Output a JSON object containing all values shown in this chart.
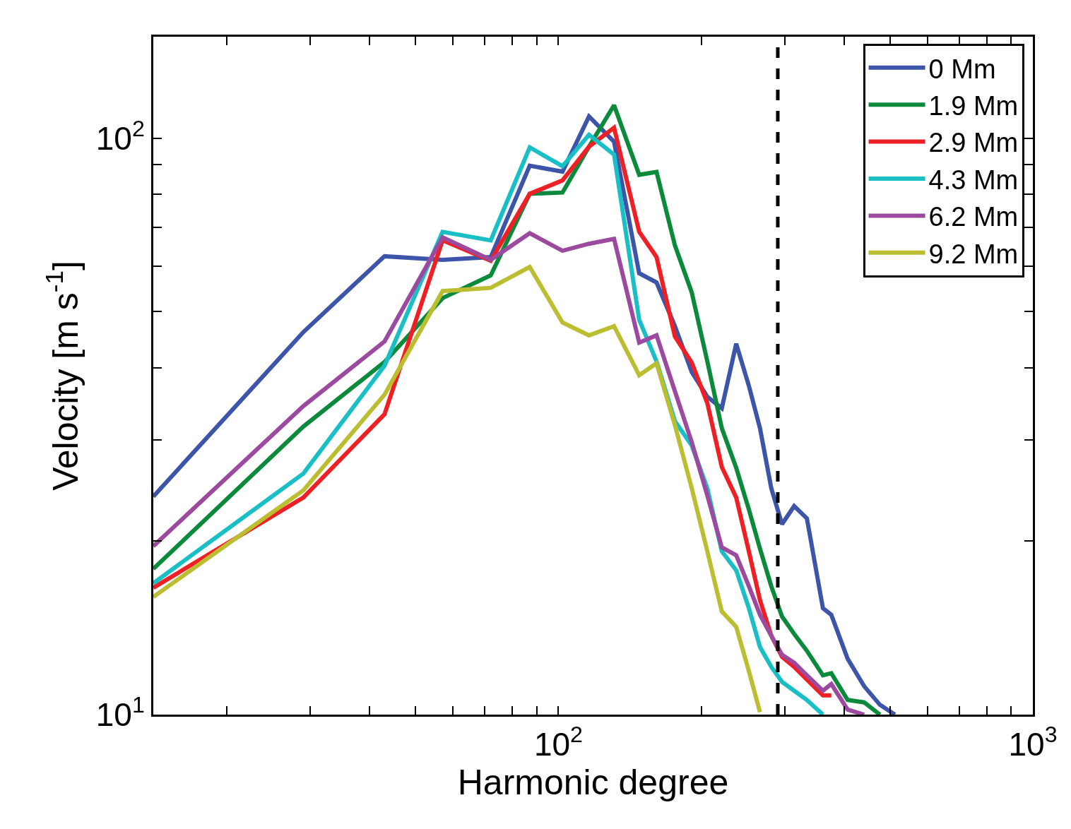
{
  "chart_data": {
    "type": "line",
    "xlabel": "Harmonic degree",
    "ylabel": "Velocity [m s$^{-1}$]",
    "log": "xy",
    "legend": "top right",
    "line_style": "solid",
    "marker": "none",
    "xlim": [
      14,
      1000
    ],
    "ylim": [
      10,
      150
    ],
    "xticks": [
      {
        "value": 20,
        "label": null
      },
      {
        "value": 30,
        "label": null
      },
      {
        "value": 40,
        "label": null
      },
      {
        "value": 50,
        "label": null
      },
      {
        "value": 60,
        "label": null
      },
      {
        "value": 70,
        "label": null
      },
      {
        "value": 80,
        "label": null
      },
      {
        "value": 90,
        "label": null
      },
      {
        "value": 100,
        "label": "10$^{2}$"
      },
      {
        "value": 200,
        "label": null
      },
      {
        "value": 300,
        "label": null
      },
      {
        "value": 400,
        "label": null
      },
      {
        "value": 500,
        "label": null
      },
      {
        "value": 600,
        "label": null
      },
      {
        "value": 700,
        "label": null
      },
      {
        "value": 800,
        "label": null
      },
      {
        "value": 900,
        "label": null
      },
      {
        "value": 1000,
        "label": "10$^{3}$"
      }
    ],
    "yticks": [
      {
        "value": 10,
        "label": "10$^{1}$"
      },
      {
        "value": 20,
        "label": null
      },
      {
        "value": 30,
        "label": null
      },
      {
        "value": 40,
        "label": null
      },
      {
        "value": 50,
        "label": null
      },
      {
        "value": 60,
        "label": null
      },
      {
        "value": 70,
        "label": null
      },
      {
        "value": 80,
        "label": null
      },
      {
        "value": 90,
        "label": null
      },
      {
        "value": 100,
        "label": "10$^{2}$"
      }
    ],
    "x": [
      14,
      29,
      43,
      57,
      72,
      87,
      102,
      116,
      131,
      148,
      161,
      176,
      191,
      206,
      221,
      237,
      252,
      266,
      281,
      296,
      314,
      334,
      361,
      376,
      407,
      441,
      476,
      512
    ],
    "series": [
      {
        "name": "0 Mm",
        "color": "#3d55a8",
        "values": [
          23.9,
          46.1,
          62.4,
          61.5,
          62.2,
          89.6,
          87.5,
          109.1,
          98.6,
          58.3,
          56.2,
          47.2,
          39.3,
          35.6,
          34.0,
          44.0,
          37.2,
          31.4,
          24.7,
          21.4,
          23.0,
          21.9,
          15.3,
          14.9,
          12.5,
          11.2,
          10.4,
          10.0
        ]
      },
      {
        "name": "1.9 Mm",
        "color": "#0b8a3c",
        "values": [
          17.9,
          31.6,
          40.9,
          52.8,
          57.8,
          80.1,
          80.5,
          96.7,
          114.1,
          86.4,
          87.4,
          65.2,
          54.0,
          41.0,
          31.4,
          26.8,
          22.7,
          19.4,
          16.7,
          14.8,
          13.8,
          12.9,
          11.7,
          11.8,
          10.6,
          10.5,
          10.0,
          null
        ]
      },
      {
        "name": "2.9 Mm",
        "color": "#ee2025",
        "values": [
          16.6,
          23.8,
          33.2,
          66.5,
          61.3,
          80.1,
          84.5,
          96.7,
          104.3,
          68.8,
          62.2,
          45.3,
          40.8,
          34.7,
          26.9,
          23.8,
          19.2,
          15.8,
          13.7,
          12.6,
          12.1,
          11.5,
          10.8,
          10.8,
          null,
          null,
          null,
          null
        ]
      },
      {
        "name": "4.3 Mm",
        "color": "#19bfc4",
        "values": [
          16.9,
          26.2,
          40.3,
          68.8,
          66.5,
          96.4,
          89.4,
          101.4,
          93.7,
          48.4,
          41.0,
          32.3,
          29.3,
          24.7,
          19.2,
          17.8,
          15.3,
          13.1,
          12.1,
          11.4,
          11.0,
          10.6,
          10.0,
          null,
          null,
          null,
          null,
          null
        ]
      },
      {
        "name": "6.2 Mm",
        "color": "#9b4a9f",
        "values": [
          19.6,
          34.3,
          44.4,
          67.3,
          61.5,
          68.4,
          63.8,
          65.6,
          66.9,
          44.2,
          45.5,
          36.4,
          29.7,
          24.0,
          19.5,
          18.9,
          16.7,
          14.9,
          13.7,
          12.7,
          12.3,
          11.7,
          11.0,
          11.3,
          10.2,
          10.0,
          null,
          null
        ]
      },
      {
        "name": "9.2 Mm",
        "color": "#bcbe31",
        "values": [
          16.0,
          24.5,
          35.9,
          54.3,
          55.0,
          59.8,
          47.9,
          45.5,
          47.2,
          38.8,
          40.7,
          31.8,
          24.7,
          19.2,
          15.1,
          14.2,
          11.9,
          10.1,
          null,
          null,
          null,
          null,
          null,
          null,
          null,
          null,
          null,
          null
        ]
      }
    ],
    "ref_lines": [
      {
        "axis": "x",
        "value": 290,
        "color": "#000000",
        "line_style": "dashed"
      }
    ]
  }
}
